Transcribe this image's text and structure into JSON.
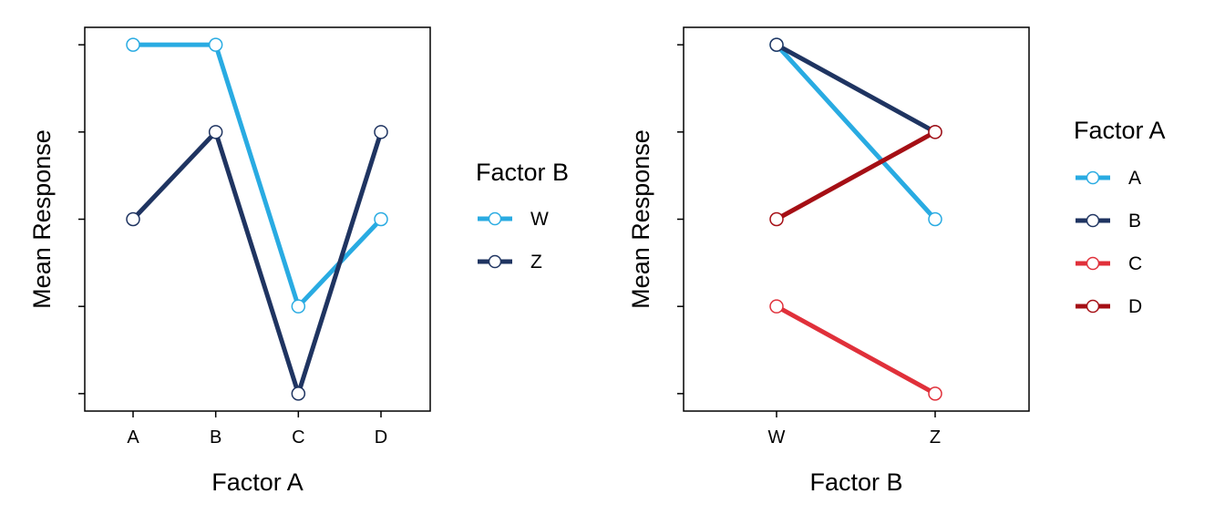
{
  "chart_data": [
    {
      "type": "line",
      "xlabel": "Factor A",
      "ylabel": "Mean Response",
      "categories": [
        "A",
        "B",
        "C",
        "D"
      ],
      "ylim": [
        0.8,
        5.2
      ],
      "y_ticks": [
        1,
        2,
        3,
        4,
        5
      ],
      "y_tick_labels_shown": false,
      "grid": false,
      "legend": {
        "title": "Factor B",
        "placement": "right"
      },
      "series": [
        {
          "name": "W",
          "color": "#29abe2",
          "values": [
            5,
            5,
            2,
            3
          ]
        },
        {
          "name": "Z",
          "color": "#1f3461",
          "values": [
            3,
            4,
            1,
            4
          ]
        }
      ]
    },
    {
      "type": "line",
      "xlabel": "Factor B",
      "ylabel": "Mean Response",
      "categories": [
        "W",
        "Z"
      ],
      "ylim": [
        0.8,
        5.2
      ],
      "y_ticks": [
        1,
        2,
        3,
        4,
        5
      ],
      "y_tick_labels_shown": false,
      "grid": false,
      "legend": {
        "title": "Factor A",
        "placement": "right"
      },
      "series": [
        {
          "name": "A",
          "color": "#29abe2",
          "values": [
            5,
            3
          ]
        },
        {
          "name": "B",
          "color": "#1f3461",
          "values": [
            5,
            4
          ]
        },
        {
          "name": "C",
          "color": "#e0303a",
          "values": [
            2,
            1
          ]
        },
        {
          "name": "D",
          "color": "#a50f15",
          "values": [
            3,
            4
          ]
        }
      ]
    }
  ]
}
